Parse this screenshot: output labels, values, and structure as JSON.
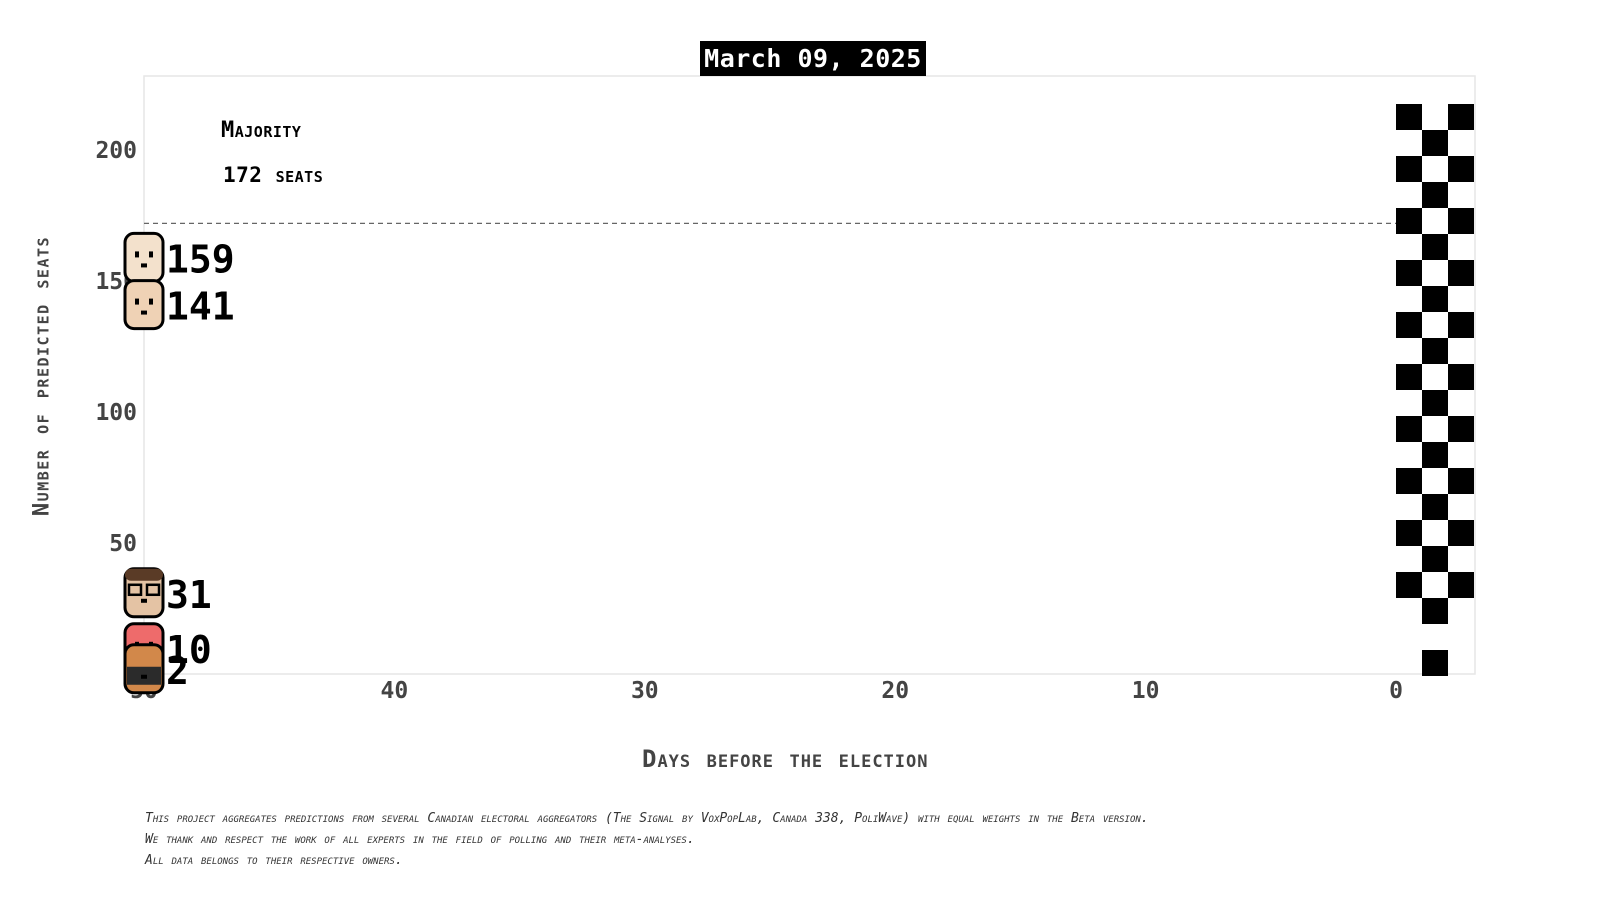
{
  "header": {
    "date": "March 09, 2025"
  },
  "majority": {
    "title": "Majority",
    "seats_label": "172 seats"
  },
  "axes": {
    "x_title": "Days before the election",
    "y_title": "Number of predicted seats"
  },
  "footer": {
    "line1": "This project aggregates predictions from several Canadian electoral aggregators (The Signal by VoxPopLab, Canada 338, PoliWave) with equal weights in the Beta version.",
    "line2": "We thank and respect the work of all experts in the field of polling and their meta-analyses.",
    "line3": "All data belongs to their respective owners."
  },
  "chart_data": {
    "type": "scatter",
    "title": "March 09, 2025",
    "xlabel": "Days before the election",
    "ylabel": "Number of predicted seats",
    "xlim": [
      50,
      -3
    ],
    "ylim": [
      0,
      225
    ],
    "x_ticks": [
      50,
      40,
      30,
      20,
      10,
      0
    ],
    "y_ticks": [
      50,
      100,
      150,
      200
    ],
    "majority_line": 172,
    "finish_line_x": 0,
    "series": [
      {
        "value": 159,
        "x": 50,
        "avatar": "bald-leader-avatar",
        "skin": "#f3e1cc"
      },
      {
        "value": 141,
        "x": 50,
        "avatar": "leader-avatar",
        "skin": "#efd2b5"
      },
      {
        "value": 31,
        "x": 50,
        "avatar": "glasses-leader-avatar",
        "skin": "#e4c3a4"
      },
      {
        "value": 10,
        "x": 50,
        "avatar": "red-leader-avatar",
        "skin": "#ee6b6b"
      },
      {
        "value": 2,
        "x": 50,
        "avatar": "orange-leader-avatar",
        "skin": "#d2884a"
      }
    ],
    "colors": {
      "grid_line": "#666666",
      "tick_text": "#444444",
      "plot_border": "#e6e6e6"
    }
  }
}
